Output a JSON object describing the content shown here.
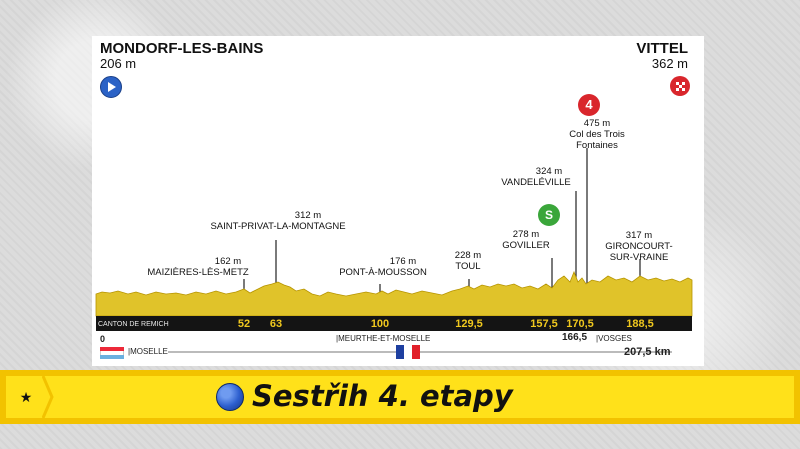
{
  "start": {
    "name": "MONDORF-LES-BAINS",
    "altitude": "206 m"
  },
  "finish": {
    "name": "VITTEL",
    "altitude": "362 m"
  },
  "climb_badge": "4",
  "sprint_badge": "S",
  "peaks": [
    {
      "alt": "162 m",
      "name": "MAIZIÈRES-LÈS-METZ"
    },
    {
      "alt": "312 m",
      "name": "SAINT-PRIVAT-LA-MONTAGNE"
    },
    {
      "alt": "176 m",
      "name": "PONT-À-MOUSSON"
    },
    {
      "alt": "228 m",
      "name": "TOUL"
    },
    {
      "alt": "278 m",
      "name": "GOVILLER"
    },
    {
      "alt": "324 m",
      "name": "VANDELÉVILLE"
    },
    {
      "alt": "475 m",
      "name": "Col des Trois Fontaines"
    },
    {
      "alt": "317 m",
      "name": "GIRONCOURT-SUR-VRAINE"
    }
  ],
  "km_marks": [
    "52",
    "63",
    "100",
    "129,5",
    "157,5",
    "170,5",
    "188,5"
  ],
  "canton_label": "CANTON DE REMICH",
  "bottom": {
    "start_km": "0",
    "moselle": "|MOSELLE",
    "meurthe": "|MEURTHE-ET-MOSELLE",
    "border_km": "166,5",
    "vosges": "|VOSGES",
    "total": "207,5 km"
  },
  "banner": {
    "title": "Sestřih 4. etapy",
    "star": "★"
  },
  "colors": {
    "profile_fill": "#e0c32a",
    "km_bar": "#141414",
    "km_text": "#f0c81e",
    "banner": "#ffe11a"
  }
}
